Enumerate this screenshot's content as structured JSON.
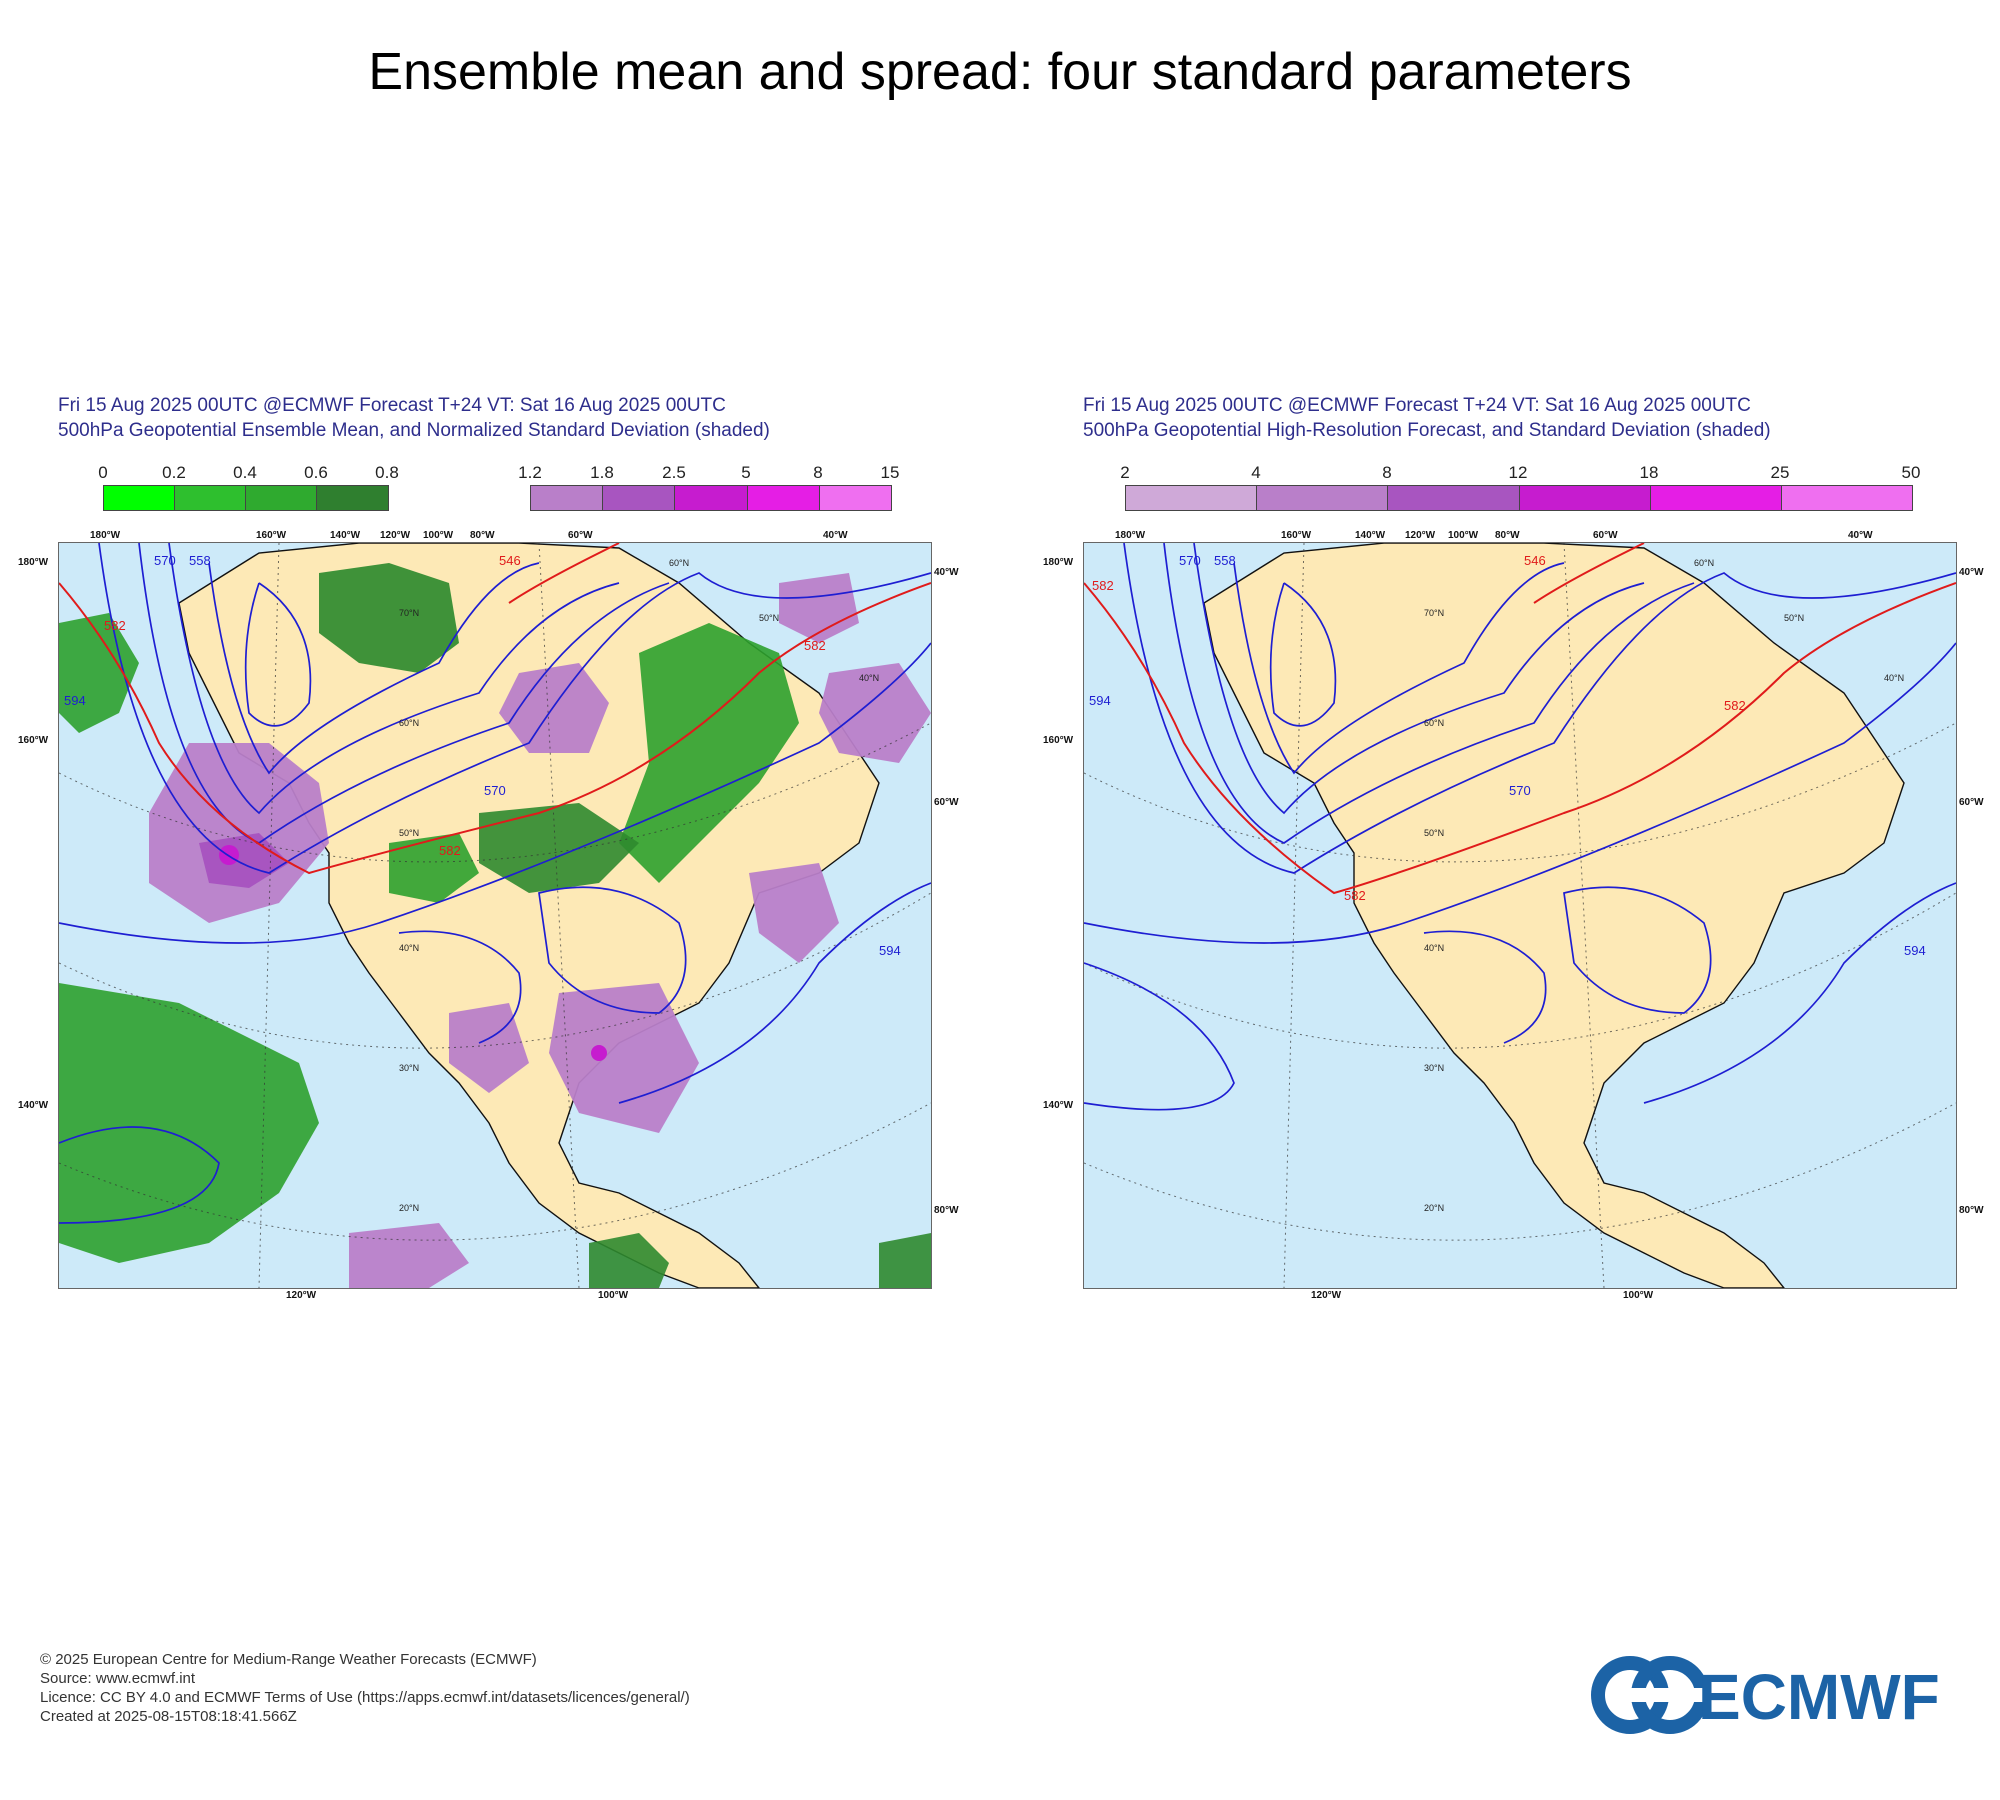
{
  "title": "Ensemble mean and spread: four standard parameters",
  "panels": [
    {
      "title_line1": "Fri 15 Aug 2025 00UTC @ECMWF Forecast T+24 VT: Sat 16 Aug 2025 00UTC",
      "title_line2": "500hPa Geopotential Ensemble Mean, and Normalized Standard Deviation (shaded)",
      "legend_groups": [
        {
          "ticks": [
            "0",
            "0.2",
            "0.4",
            "0.6",
            "0.8"
          ],
          "colors": [
            "#00ff00",
            "#2ebf2e",
            "#2faa2f",
            "#2a9a2a",
            "#2f7f2f"
          ]
        },
        {
          "ticks": [
            "1.2",
            "1.8",
            "2.5",
            "5",
            "8",
            "15"
          ],
          "colors": [
            "#b97fc9",
            "#a855c0",
            "#c61ccf",
            "#e51ee5",
            "#ef6ff0"
          ]
        }
      ],
      "top_labels": [
        "180°W",
        "160°W",
        "140°W",
        "120°W",
        "100°W",
        "80°W",
        "60°W",
        "40°W"
      ],
      "left_labels": [
        "180°W",
        "160°W",
        "140°W"
      ],
      "right_labels": [
        "40°W",
        "60°W",
        "80°W"
      ],
      "bottom_labels": [
        "120°W",
        "100°W"
      ],
      "lat_labels": [
        "70°N",
        "60°N",
        "50°N",
        "40°N",
        "30°N",
        "20°N",
        "60°N",
        "40°N",
        "50°N"
      ],
      "contour_labels": [
        "570",
        "558",
        "546",
        "582",
        "594",
        "570",
        "582",
        "582",
        "594"
      ]
    },
    {
      "title_line1": "Fri 15 Aug 2025 00UTC @ECMWF Forecast T+24 VT: Sat 16 Aug 2025 00UTC",
      "title_line2": "500hPa Geopotential High-Resolution Forecast, and Standard Deviation (shaded)",
      "legend_groups": [
        {
          "ticks": [
            "2",
            "4",
            "8",
            "12",
            "18",
            "25",
            "50"
          ],
          "colors": [
            "#cfa9d8",
            "#b97fc9",
            "#a855c0",
            "#c61ccf",
            "#e51ee5",
            "#ef6ff0"
          ]
        }
      ],
      "top_labels": [
        "180°W",
        "160°W",
        "140°W",
        "120°W",
        "100°W",
        "80°W",
        "60°W",
        "40°W"
      ],
      "left_labels": [
        "180°W",
        "160°W",
        "140°W"
      ],
      "right_labels": [
        "40°W",
        "60°W",
        "80°W"
      ],
      "bottom_labels": [
        "120°W",
        "100°W"
      ],
      "lat_labels": [
        "70°N",
        "60°N",
        "50°N",
        "40°N",
        "30°N",
        "20°N",
        "60°N",
        "40°N",
        "50°N"
      ],
      "contour_labels": [
        "570",
        "558",
        "582",
        "546",
        "594",
        "570",
        "582",
        "582",
        "594"
      ]
    }
  ],
  "footer": {
    "line1": "© 2025 European Centre for Medium-Range Weather Forecasts (ECMWF)",
    "line2": "Source: www.ecmwf.int",
    "line3": "Licence: CC BY 4.0 and ECMWF Terms of Use (https://apps.ecmwf.int/datasets/licences/general/)",
    "line4": "Created at 2025-08-15T08:18:41.566Z"
  },
  "logo": {
    "text": "ECMWF",
    "color": "#1c63a6"
  },
  "colors": {
    "ocean": "#cdeaf9",
    "land": "#fde9b6",
    "contour": "#1e1ed2",
    "contour_582": "#e01b1b"
  }
}
